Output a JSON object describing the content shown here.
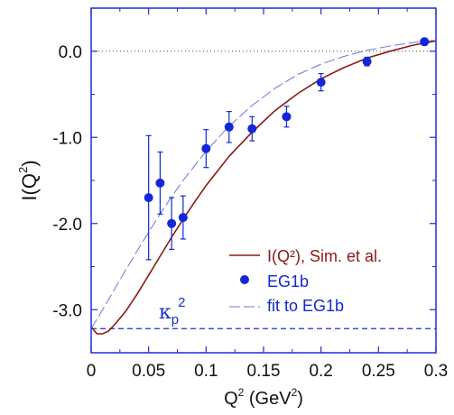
{
  "chart_data": {
    "type": "scatter",
    "xlabel": {
      "base": "Q",
      "sup": "2",
      "open": " (GeV",
      "sup2": "2",
      "close": ")"
    },
    "ylabel": {
      "base": "I(Q",
      "sup": "2",
      "close": ")"
    },
    "xlim": [
      0,
      0.3
    ],
    "ylim": [
      -3.5,
      0.5
    ],
    "x_ticks": [
      "0",
      "0.05",
      "0.1",
      "0.15",
      "0.2",
      "0.25",
      "0.3"
    ],
    "x_tick_values": [
      0,
      0.05,
      0.1,
      0.15,
      0.2,
      0.25,
      0.3
    ],
    "y_ticks": [
      "0.0",
      "-1.0",
      "-2.0",
      "-3.0"
    ],
    "y_tick_values": [
      0,
      -1,
      -2,
      -3
    ],
    "zero_line": {
      "y": 0,
      "style": "dotted"
    },
    "kappa_line": {
      "y": -3.22,
      "style": "dashed",
      "color": "#1a2fd6",
      "label_base": "κ",
      "label_sub": "p",
      "label_sup": "2"
    },
    "series": [
      {
        "name": "I(Q²), Sim. et al.",
        "kind": "line",
        "color": "#8b1a10",
        "x": [
          0,
          0.005,
          0.01,
          0.015,
          0.02,
          0.03,
          0.04,
          0.05,
          0.06,
          0.07,
          0.08,
          0.09,
          0.1,
          0.12,
          0.14,
          0.16,
          0.18,
          0.2,
          0.22,
          0.24,
          0.26,
          0.28,
          0.3
        ],
        "y": [
          -3.2,
          -3.28,
          -3.28,
          -3.25,
          -3.18,
          -3.02,
          -2.82,
          -2.6,
          -2.38,
          -2.16,
          -1.95,
          -1.75,
          -1.56,
          -1.22,
          -0.94,
          -0.69,
          -0.49,
          -0.32,
          -0.19,
          -0.08,
          0.0,
          0.07,
          0.12
        ]
      },
      {
        "name": "EG1b",
        "kind": "points",
        "color": "#1227d8",
        "x": [
          0.05,
          0.06,
          0.07,
          0.08,
          0.1,
          0.12,
          0.14,
          0.17,
          0.2,
          0.24,
          0.29
        ],
        "y": [
          -1.7,
          -1.53,
          -2.0,
          -1.93,
          -1.13,
          -0.88,
          -0.9,
          -0.76,
          -0.36,
          -0.12,
          0.11
        ],
        "err": [
          0.72,
          0.36,
          0.3,
          0.25,
          0.22,
          0.18,
          0.14,
          0.12,
          0.1,
          0.05,
          0.04
        ]
      },
      {
        "name": "fit to EG1b",
        "kind": "dashed-line",
        "color": "#6b74de",
        "x": [
          0,
          0.01,
          0.02,
          0.03,
          0.04,
          0.05,
          0.06,
          0.07,
          0.08,
          0.1,
          0.12,
          0.14,
          0.16,
          0.18,
          0.2,
          0.22,
          0.24,
          0.26,
          0.28,
          0.3
        ],
        "y": [
          -3.22,
          -3.0,
          -2.77,
          -2.54,
          -2.32,
          -2.1,
          -1.89,
          -1.69,
          -1.5,
          -1.16,
          -0.87,
          -0.63,
          -0.43,
          -0.27,
          -0.15,
          -0.06,
          0.01,
          0.06,
          0.1,
          0.13
        ]
      }
    ],
    "legend": {
      "placement": "lower-right"
    },
    "frame_color": "#1a2fd6",
    "grid": false
  }
}
